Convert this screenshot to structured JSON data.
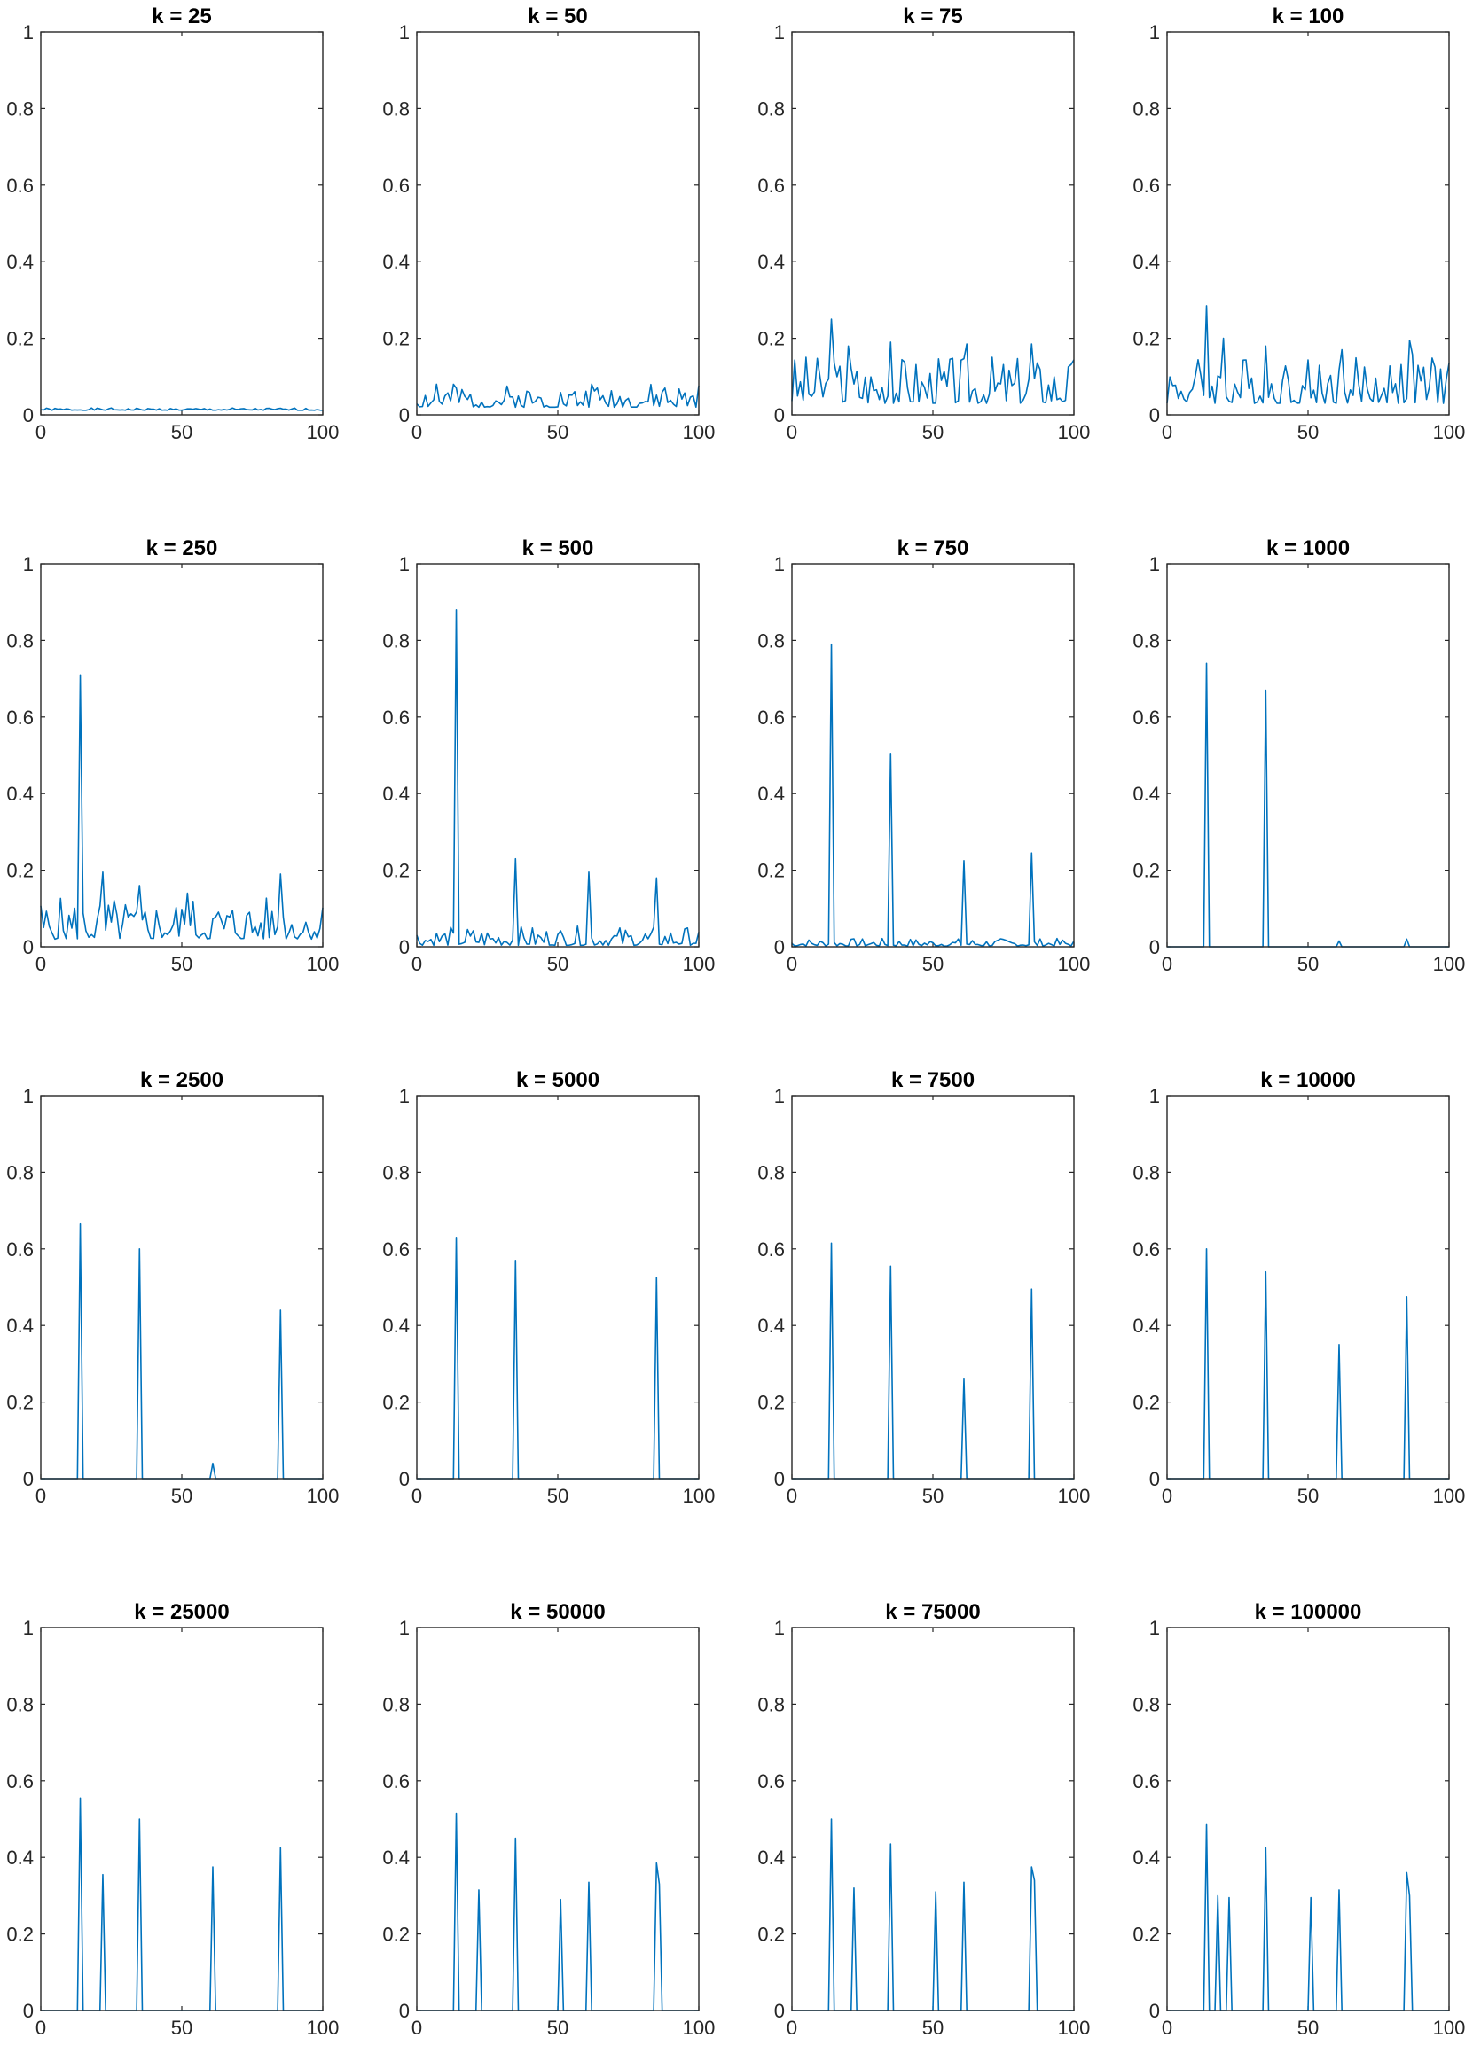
{
  "figure": {
    "line_color": "#0072BD"
  },
  "chart_data": [
    {
      "type": "line",
      "title": "k = 25",
      "xlim": [
        0,
        100
      ],
      "ylim": [
        0,
        1
      ],
      "xticks": [
        "0",
        "50",
        "100"
      ],
      "yticks": [
        "0",
        "0.2",
        "0.4",
        "0.6",
        "0.8",
        "1"
      ],
      "noise": {
        "base": 0.012,
        "amp": 0.006,
        "seed": 1
      },
      "peaks": []
    },
    {
      "type": "line",
      "title": "k = 50",
      "xlim": [
        0,
        100
      ],
      "ylim": [
        0,
        1
      ],
      "xticks": [
        "0",
        "50",
        "100"
      ],
      "yticks": [
        "0",
        "0.2",
        "0.4",
        "0.6",
        "0.8",
        "1"
      ],
      "noise": {
        "base": 0.02,
        "amp": 0.06,
        "seed": 2
      },
      "peaks": [
        [
          7,
          0.08
        ],
        [
          14,
          0.07
        ],
        [
          62,
          0.08
        ],
        [
          88,
          0.07
        ]
      ]
    },
    {
      "type": "line",
      "title": "k = 75",
      "xlim": [
        0,
        100
      ],
      "ylim": [
        0,
        1
      ],
      "xticks": [
        "0",
        "50",
        "100"
      ],
      "yticks": [
        "0",
        "0.2",
        "0.4",
        "0.6",
        "0.8",
        "1"
      ],
      "noise": {
        "base": 0.03,
        "amp": 0.13,
        "seed": 3
      },
      "peaks": [
        [
          14,
          0.25
        ],
        [
          20,
          0.18
        ],
        [
          35,
          0.19
        ],
        [
          62,
          0.185
        ],
        [
          85,
          0.185
        ]
      ]
    },
    {
      "type": "line",
      "title": "k = 100",
      "xlim": [
        0,
        100
      ],
      "ylim": [
        0,
        1
      ],
      "xticks": [
        "0",
        "50",
        "100"
      ],
      "yticks": [
        "0",
        "0.2",
        "0.4",
        "0.6",
        "0.8",
        "1"
      ],
      "noise": {
        "base": 0.03,
        "amp": 0.13,
        "seed": 4
      },
      "peaks": [
        [
          14,
          0.285
        ],
        [
          20,
          0.2
        ],
        [
          35,
          0.18
        ],
        [
          62,
          0.17
        ],
        [
          86,
          0.195
        ]
      ]
    },
    {
      "type": "line",
      "title": "k = 250",
      "xlim": [
        0,
        100
      ],
      "ylim": [
        0,
        1
      ],
      "xticks": [
        "0",
        "50",
        "100"
      ],
      "yticks": [
        "0",
        "0.2",
        "0.4",
        "0.6",
        "0.8",
        "1"
      ],
      "noise": {
        "base": 0.02,
        "amp": 0.11,
        "seed": 5
      },
      "peaks": [
        [
          14,
          0.71
        ],
        [
          22,
          0.195
        ],
        [
          35,
          0.16
        ],
        [
          52,
          0.14
        ],
        [
          85,
          0.19
        ]
      ]
    },
    {
      "type": "line",
      "title": "k = 500",
      "xlim": [
        0,
        100
      ],
      "ylim": [
        0,
        1
      ],
      "xticks": [
        "0",
        "50",
        "100"
      ],
      "yticks": [
        "0",
        "0.2",
        "0.4",
        "0.6",
        "0.8",
        "1"
      ],
      "noise": {
        "base": 0.004,
        "amp": 0.05,
        "seed": 6
      },
      "peaks": [
        [
          14,
          0.88
        ],
        [
          35,
          0.23
        ],
        [
          61,
          0.195
        ],
        [
          85,
          0.18
        ]
      ]
    },
    {
      "type": "line",
      "title": "k = 750",
      "xlim": [
        0,
        100
      ],
      "ylim": [
        0,
        1
      ],
      "xticks": [
        "0",
        "50",
        "100"
      ],
      "yticks": [
        "0",
        "0.2",
        "0.4",
        "0.6",
        "0.8",
        "1"
      ],
      "noise": {
        "base": 0.002,
        "amp": 0.02,
        "seed": 7
      },
      "peaks": [
        [
          14,
          0.79
        ],
        [
          35,
          0.505
        ],
        [
          61,
          0.225
        ],
        [
          85,
          0.245
        ]
      ]
    },
    {
      "type": "line",
      "title": "k = 1000",
      "xlim": [
        0,
        100
      ],
      "ylim": [
        0,
        1
      ],
      "xticks": [
        "0",
        "50",
        "100"
      ],
      "yticks": [
        "0",
        "0.2",
        "0.4",
        "0.6",
        "0.8",
        "1"
      ],
      "noise": {
        "base": 0,
        "amp": 0,
        "seed": 8
      },
      "peaks": [
        [
          14,
          0.74
        ],
        [
          35,
          0.67
        ],
        [
          61,
          0.015
        ],
        [
          85,
          0.02
        ]
      ]
    },
    {
      "type": "line",
      "title": "k = 2500",
      "xlim": [
        0,
        100
      ],
      "ylim": [
        0,
        1
      ],
      "xticks": [
        "0",
        "50",
        "100"
      ],
      "yticks": [
        "0",
        "0.2",
        "0.4",
        "0.6",
        "0.8",
        "1"
      ],
      "noise": {
        "base": 0,
        "amp": 0,
        "seed": 9
      },
      "peaks": [
        [
          14,
          0.665
        ],
        [
          35,
          0.6
        ],
        [
          61,
          0.04
        ],
        [
          85,
          0.44
        ]
      ]
    },
    {
      "type": "line",
      "title": "k = 5000",
      "xlim": [
        0,
        100
      ],
      "ylim": [
        0,
        1
      ],
      "xticks": [
        "0",
        "50",
        "100"
      ],
      "yticks": [
        "0",
        "0.2",
        "0.4",
        "0.6",
        "0.8",
        "1"
      ],
      "noise": {
        "base": 0,
        "amp": 0,
        "seed": 10
      },
      "peaks": [
        [
          14,
          0.63
        ],
        [
          35,
          0.57
        ],
        [
          85,
          0.525
        ]
      ]
    },
    {
      "type": "line",
      "title": "k = 7500",
      "xlim": [
        0,
        100
      ],
      "ylim": [
        0,
        1
      ],
      "xticks": [
        "0",
        "50",
        "100"
      ],
      "yticks": [
        "0",
        "0.2",
        "0.4",
        "0.6",
        "0.8",
        "1"
      ],
      "noise": {
        "base": 0,
        "amp": 0,
        "seed": 11
      },
      "peaks": [
        [
          14,
          0.615
        ],
        [
          35,
          0.555
        ],
        [
          61,
          0.26
        ],
        [
          85,
          0.495
        ]
      ]
    },
    {
      "type": "line",
      "title": "k = 10000",
      "xlim": [
        0,
        100
      ],
      "ylim": [
        0,
        1
      ],
      "xticks": [
        "0",
        "50",
        "100"
      ],
      "yticks": [
        "0",
        "0.2",
        "0.4",
        "0.6",
        "0.8",
        "1"
      ],
      "noise": {
        "base": 0,
        "amp": 0,
        "seed": 12
      },
      "peaks": [
        [
          14,
          0.6
        ],
        [
          35,
          0.54
        ],
        [
          61,
          0.35
        ],
        [
          85,
          0.475
        ]
      ]
    },
    {
      "type": "line",
      "title": "k = 25000",
      "xlim": [
        0,
        100
      ],
      "ylim": [
        0,
        1
      ],
      "xticks": [
        "0",
        "50",
        "100"
      ],
      "yticks": [
        "0",
        "0.2",
        "0.4",
        "0.6",
        "0.8",
        "1"
      ],
      "noise": {
        "base": 0,
        "amp": 0,
        "seed": 13
      },
      "peaks": [
        [
          14,
          0.555
        ],
        [
          22,
          0.355
        ],
        [
          35,
          0.5
        ],
        [
          61,
          0.375
        ],
        [
          85,
          0.425
        ]
      ]
    },
    {
      "type": "line",
      "title": "k = 50000",
      "xlim": [
        0,
        100
      ],
      "ylim": [
        0,
        1
      ],
      "xticks": [
        "0",
        "50",
        "100"
      ],
      "yticks": [
        "0",
        "0.2",
        "0.4",
        "0.6",
        "0.8",
        "1"
      ],
      "noise": {
        "base": 0,
        "amp": 0,
        "seed": 14
      },
      "peaks": [
        [
          14,
          0.515
        ],
        [
          22,
          0.315
        ],
        [
          35,
          0.45
        ],
        [
          51,
          0.29
        ],
        [
          61,
          0.335
        ],
        [
          85,
          0.385
        ],
        [
          86,
          0.33
        ]
      ]
    },
    {
      "type": "line",
      "title": "k = 75000",
      "xlim": [
        0,
        100
      ],
      "ylim": [
        0,
        1
      ],
      "xticks": [
        "0",
        "50",
        "100"
      ],
      "yticks": [
        "0",
        "0.2",
        "0.4",
        "0.6",
        "0.8",
        "1"
      ],
      "noise": {
        "base": 0,
        "amp": 0,
        "seed": 15
      },
      "peaks": [
        [
          14,
          0.5
        ],
        [
          22,
          0.32
        ],
        [
          35,
          0.435
        ],
        [
          51,
          0.31
        ],
        [
          61,
          0.335
        ],
        [
          85,
          0.375
        ],
        [
          86,
          0.34
        ]
      ]
    },
    {
      "type": "line",
      "title": "k = 100000",
      "xlim": [
        0,
        100
      ],
      "ylim": [
        0,
        1
      ],
      "xticks": [
        "0",
        "50",
        "100"
      ],
      "yticks": [
        "0",
        "0.2",
        "0.4",
        "0.6",
        "0.8",
        "1"
      ],
      "noise": {
        "base": 0,
        "amp": 0,
        "seed": 16
      },
      "peaks": [
        [
          14,
          0.485
        ],
        [
          18,
          0.3
        ],
        [
          22,
          0.295
        ],
        [
          35,
          0.425
        ],
        [
          51,
          0.295
        ],
        [
          61,
          0.315
        ],
        [
          85,
          0.36
        ],
        [
          86,
          0.3
        ]
      ]
    }
  ]
}
